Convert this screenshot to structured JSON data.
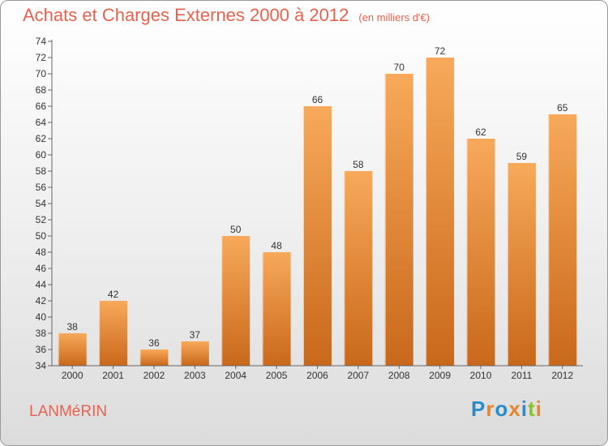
{
  "title": "Achats et Charges Externes 2000 à 2012",
  "unit": "(en milliers d'€)",
  "commune": "LANMéRIN",
  "logo": {
    "letters": [
      "P",
      "r",
      "o",
      "x",
      "i",
      "t",
      "i"
    ],
    "colors": [
      "#2b8ccc",
      "#e8862e",
      "#2b8ccc",
      "#e8862e",
      "#2b8ccc",
      "#8cbf2e",
      "#e8862e"
    ]
  },
  "colors": {
    "bar_light": "#f8a95a",
    "bar_dark": "#c9681a",
    "title": "#e8624e"
  },
  "chart_data": {
    "type": "bar",
    "categories": [
      "2000",
      "2001",
      "2002",
      "2003",
      "2004",
      "2005",
      "2006",
      "2007",
      "2008",
      "2009",
      "2010",
      "2011",
      "2012"
    ],
    "values": [
      38,
      42,
      36,
      37,
      50,
      48,
      66,
      58,
      70,
      72,
      62,
      59,
      65
    ],
    "title": "Achats et Charges Externes 2000 à 2012",
    "xlabel": "",
    "ylabel": "",
    "ylim": [
      34,
      74
    ],
    "ytick_step": 2,
    "grid": false,
    "legend": "none"
  }
}
